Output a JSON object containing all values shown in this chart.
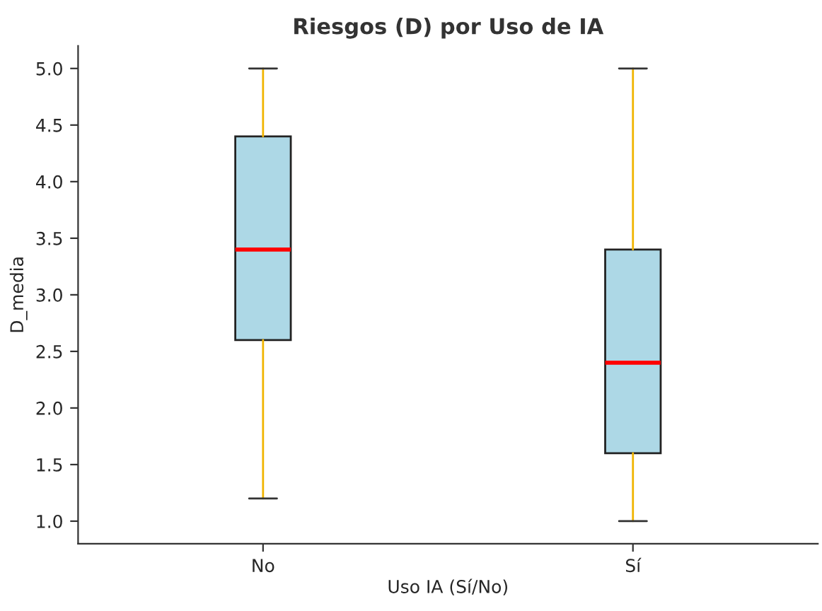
{
  "chart_data": {
    "type": "box",
    "title": "Riesgos (D) por Uso de IA",
    "xlabel": "Uso IA (Sí/No)",
    "ylabel": "D_media",
    "categories": [
      "No",
      "Sí"
    ],
    "boxes": [
      {
        "low": 1.2,
        "q1": 2.6,
        "median": 3.4,
        "q3": 4.4,
        "high": 5.0
      },
      {
        "low": 1.0,
        "q1": 1.6,
        "median": 2.4,
        "q3": 3.4,
        "high": 5.0
      }
    ],
    "colors": [
      "#add8e6",
      "#add8e6"
    ],
    "ylim": [
      0.8,
      5.2
    ],
    "yticks": [
      {
        "value": 1.0,
        "label": "1.0"
      },
      {
        "value": 1.5,
        "label": "1.5"
      },
      {
        "value": 2.0,
        "label": "2.0"
      },
      {
        "value": 2.5,
        "label": "2.5"
      },
      {
        "value": 3.0,
        "label": "3.0"
      },
      {
        "value": 3.5,
        "label": "3.5"
      },
      {
        "value": 4.0,
        "label": "4.0"
      },
      {
        "value": 4.5,
        "label": "4.5"
      },
      {
        "value": 5.0,
        "label": "5.0"
      }
    ]
  }
}
